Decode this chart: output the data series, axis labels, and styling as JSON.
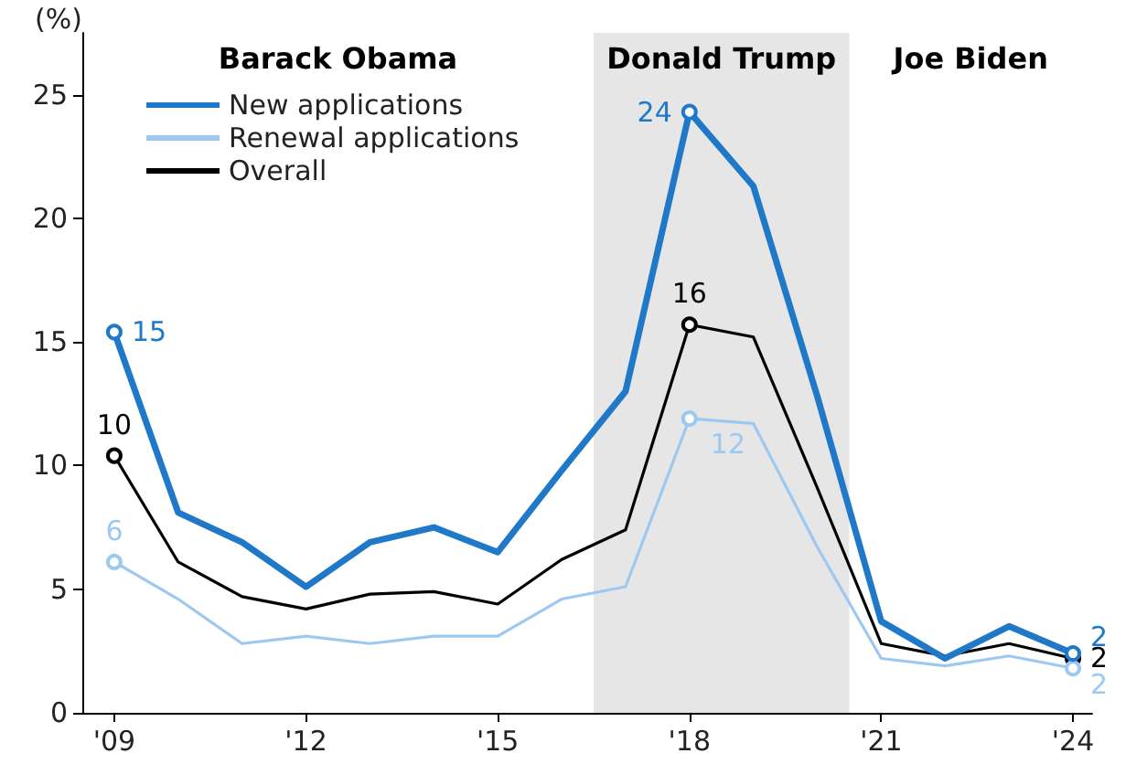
{
  "chart_data": {
    "type": "line",
    "ylabel": "(%)",
    "x": [
      2009,
      2010,
      2011,
      2012,
      2013,
      2014,
      2015,
      2016,
      2017,
      2018,
      2019,
      2020,
      2021,
      2022,
      2023,
      2024
    ],
    "xlim": [
      2008.5,
      2024.3
    ],
    "xticks": [
      {
        "value": 2009,
        "label": "'09"
      },
      {
        "value": 2012,
        "label": "'12"
      },
      {
        "value": 2015,
        "label": "'15"
      },
      {
        "value": 2018,
        "label": "'18"
      },
      {
        "value": 2021,
        "label": "'21"
      },
      {
        "value": 2024,
        "label": "'24"
      }
    ],
    "ylim": [
      0,
      27.5
    ],
    "yticks": [
      0,
      5,
      10,
      15,
      20,
      25
    ],
    "series": [
      {
        "name": "New applications",
        "color": "#1f78c8",
        "values": [
          15.4,
          8.1,
          6.9,
          5.1,
          6.9,
          7.5,
          6.5,
          9.8,
          13.0,
          24.3,
          21.3,
          12.8,
          3.7,
          2.2,
          3.5,
          2.4
        ],
        "value_labels": [
          "15",
          null,
          null,
          null,
          null,
          null,
          null,
          null,
          null,
          "24",
          null,
          null,
          null,
          null,
          null,
          "2"
        ]
      },
      {
        "name": "Renewal applications",
        "color": "#9dc8f0",
        "values": [
          6.1,
          4.6,
          2.8,
          3.1,
          2.8,
          3.1,
          3.1,
          4.6,
          5.1,
          11.9,
          11.7,
          6.7,
          2.2,
          1.9,
          2.3,
          1.8
        ],
        "value_labels": [
          "6",
          null,
          null,
          null,
          null,
          null,
          null,
          null,
          null,
          "12",
          null,
          null,
          null,
          null,
          null,
          "2"
        ]
      },
      {
        "name": "Overall",
        "color": "#000000",
        "values": [
          10.4,
          6.1,
          4.7,
          4.2,
          4.8,
          4.9,
          4.4,
          6.2,
          7.4,
          15.7,
          15.2,
          9.1,
          2.8,
          2.3,
          2.8,
          2.2
        ],
        "value_labels": [
          "10",
          null,
          null,
          null,
          null,
          null,
          null,
          null,
          null,
          "16",
          null,
          null,
          null,
          null,
          null,
          "2"
        ]
      }
    ],
    "bands": [
      {
        "axis": "x",
        "from": 2016.5,
        "to": 2020.5,
        "label": "Donald Trump",
        "color": "#e6e6e6"
      }
    ],
    "annotations": [
      "Barack Obama",
      "Joe Biden"
    ],
    "grid": false,
    "legend": "top left"
  }
}
